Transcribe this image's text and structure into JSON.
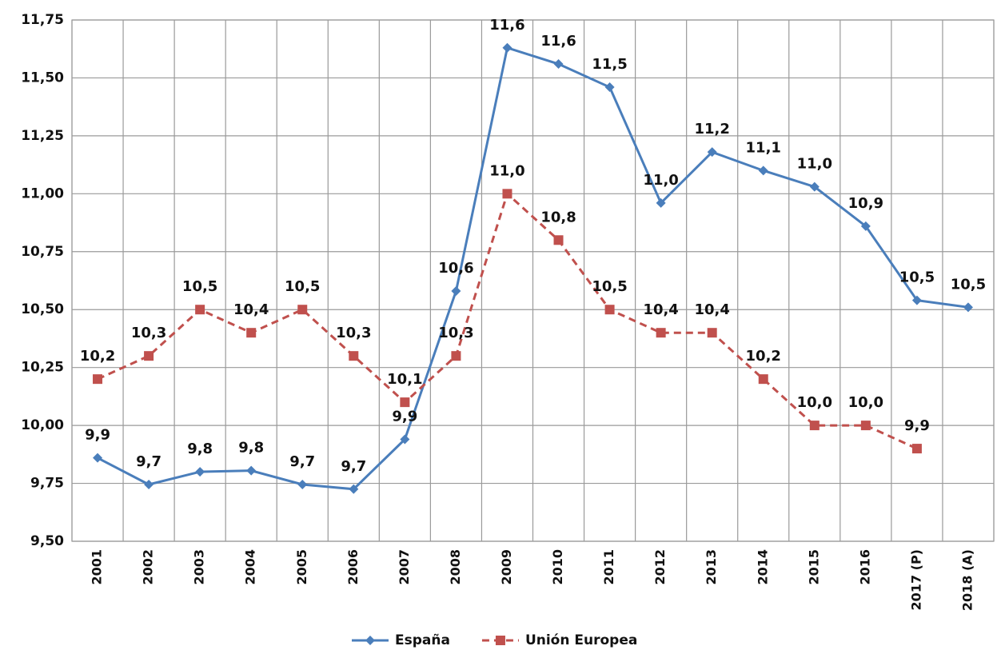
{
  "chart_data": {
    "type": "line",
    "categories": [
      "2001",
      "2002",
      "2003",
      "2004",
      "2005",
      "2006",
      "2007",
      "2008",
      "2009",
      "2010",
      "2011",
      "2012",
      "2013",
      "2014",
      "2015",
      "2016",
      "2017 (P)",
      "2018 (A)"
    ],
    "series": [
      {
        "name": "España",
        "color": "#4a7ebb",
        "marker": "diamond",
        "dash": false,
        "values": [
          9.86,
          9.745,
          9.8,
          9.805,
          9.745,
          9.725,
          9.94,
          10.58,
          11.63,
          11.56,
          11.46,
          10.96,
          11.18,
          11.1,
          11.03,
          10.86,
          10.54,
          10.51
        ],
        "value_labels": [
          "9,9",
          "9,7",
          "9,8",
          "9,8",
          "9,7",
          "9,7",
          "9,9",
          "10,6",
          "11,6",
          "11,6",
          "11,5",
          "11,0",
          "11,2",
          "11,1",
          "11,0",
          "10,9",
          "10,5",
          "10,5"
        ]
      },
      {
        "name": "Unión Europea",
        "color": "#c0504d",
        "marker": "square",
        "dash": true,
        "values": [
          10.2,
          10.3,
          10.5,
          10.4,
          10.5,
          10.3,
          10.1,
          10.3,
          11.0,
          10.8,
          10.5,
          10.4,
          10.4,
          10.2,
          10.0,
          10.0,
          9.9,
          null
        ],
        "value_labels": [
          "10,2",
          "10,3",
          "10,5",
          "10,4",
          "10,5",
          "10,3",
          "10,1",
          "10,3",
          "11,0",
          "10,8",
          "10,5",
          "10,4",
          "10,4",
          "10,2",
          "10,0",
          "10,0",
          "9,9",
          null
        ]
      }
    ],
    "ylim": [
      9.5,
      11.75
    ],
    "yticks": [
      {
        "value": 9.5,
        "label": "9,50"
      },
      {
        "value": 9.75,
        "label": "9,75"
      },
      {
        "value": 10.0,
        "label": "10,00"
      },
      {
        "value": 10.25,
        "label": "10,25"
      },
      {
        "value": 10.5,
        "label": "10,50"
      },
      {
        "value": 10.75,
        "label": "10,75"
      },
      {
        "value": 11.0,
        "label": "11,00"
      },
      {
        "value": 11.25,
        "label": "11,25"
      },
      {
        "value": 11.5,
        "label": "11,50"
      },
      {
        "value": 11.75,
        "label": "11,75"
      }
    ],
    "grid": true,
    "legend": "bottom"
  }
}
